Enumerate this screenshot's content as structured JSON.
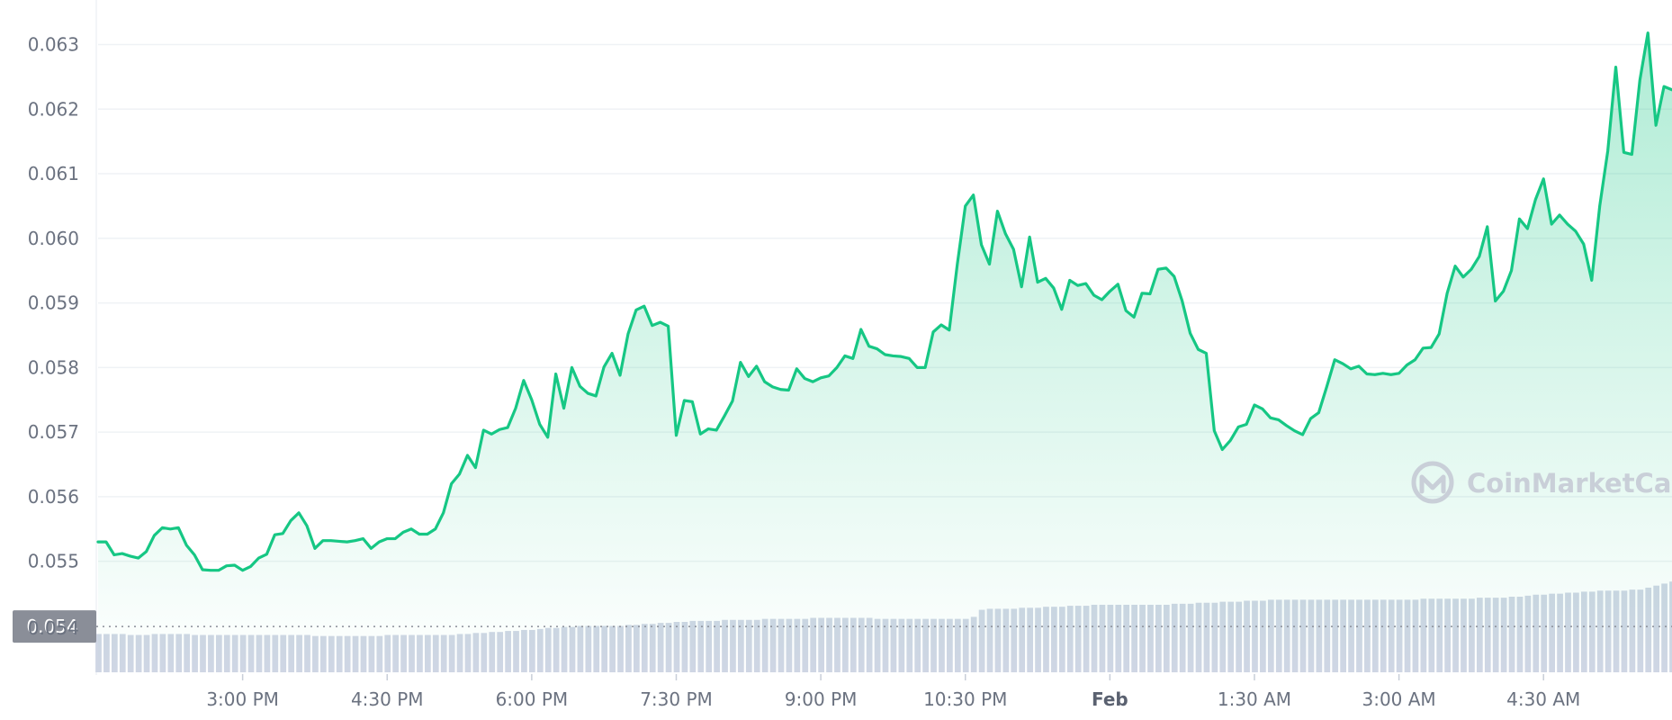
{
  "chart_data": {
    "type": "area",
    "title": "",
    "xlabel": "",
    "ylabel": "",
    "ylim": [
      0.0535,
      0.0637
    ],
    "x_tick_labels": [
      {
        "label": "3:00 PM",
        "i": 18
      },
      {
        "label": "4:30 PM",
        "i": 36
      },
      {
        "label": "6:00 PM",
        "i": 54
      },
      {
        "label": "7:30 PM",
        "i": 72
      },
      {
        "label": "9:00 PM",
        "i": 90
      },
      {
        "label": "10:30 PM",
        "i": 108
      },
      {
        "label": "Feb",
        "i": 126,
        "bold": true
      },
      {
        "label": "1:30 AM",
        "i": 144
      },
      {
        "label": "3:00 AM",
        "i": 162
      },
      {
        "label": "4:30 AM",
        "i": 180
      }
    ],
    "y_tick_labels": [
      "0.063",
      "0.062",
      "0.061",
      "0.060",
      "0.059",
      "0.058",
      "0.057",
      "0.056",
      "0.055",
      "0.054"
    ],
    "y_tick_values": [
      0.063,
      0.062,
      0.061,
      0.06,
      0.059,
      0.058,
      0.057,
      0.056,
      0.055,
      0.054
    ],
    "current_price_label": "0.054",
    "current_price_value": 0.05399,
    "series": [
      {
        "color": "#16c784",
        "values": [
          0.0553,
          0.0553,
          0.0551,
          0.05512,
          0.05508,
          0.05505,
          0.05515,
          0.0554,
          0.05552,
          0.0555,
          0.05552,
          0.05525,
          0.0551,
          0.05487,
          0.05486,
          0.05486,
          0.05493,
          0.05494,
          0.05486,
          0.05492,
          0.05505,
          0.05511,
          0.05541,
          0.05543,
          0.05563,
          0.05575,
          0.05555,
          0.0552,
          0.05532,
          0.05532,
          0.05531,
          0.0553,
          0.05532,
          0.05535,
          0.0552,
          0.0553,
          0.05535,
          0.05535,
          0.05545,
          0.0555,
          0.05542,
          0.05542,
          0.0555,
          0.05575,
          0.0562,
          0.05635,
          0.05664,
          0.05645,
          0.05703,
          0.05697,
          0.05704,
          0.05707,
          0.05737,
          0.0578,
          0.0575,
          0.05712,
          0.05692,
          0.0579,
          0.05737,
          0.058,
          0.05771,
          0.0576,
          0.05756,
          0.05801,
          0.05822,
          0.05788,
          0.05852,
          0.05889,
          0.05895,
          0.05865,
          0.0587,
          0.05864,
          0.05695,
          0.05749,
          0.05747,
          0.05697,
          0.05705,
          0.05703,
          0.05725,
          0.05748,
          0.05808,
          0.05786,
          0.05802,
          0.05778,
          0.0577,
          0.05766,
          0.05765,
          0.05798,
          0.05783,
          0.05778,
          0.05784,
          0.05787,
          0.058,
          0.05818,
          0.05814,
          0.05859,
          0.05833,
          0.05829,
          0.0582,
          0.05818,
          0.05817,
          0.05814,
          0.058,
          0.058,
          0.05855,
          0.05866,
          0.05858,
          0.0596,
          0.0605,
          0.06067,
          0.0599,
          0.0596,
          0.06042,
          0.06007,
          0.05983,
          0.05925,
          0.06002,
          0.05932,
          0.05938,
          0.05923,
          0.0589,
          0.05935,
          0.05927,
          0.0593,
          0.05912,
          0.05905,
          0.05918,
          0.05929,
          0.05888,
          0.05878,
          0.05915,
          0.05914,
          0.05952,
          0.05954,
          0.05941,
          0.05903,
          0.05853,
          0.05828,
          0.05822,
          0.05702,
          0.05673,
          0.05687,
          0.05708,
          0.05712,
          0.05742,
          0.05736,
          0.05722,
          0.05719,
          0.0571,
          0.05702,
          0.05696,
          0.05721,
          0.0573,
          0.0577,
          0.05812,
          0.05806,
          0.05798,
          0.05802,
          0.0579,
          0.05789,
          0.05791,
          0.05789,
          0.05791,
          0.05804,
          0.05812,
          0.0583,
          0.05831,
          0.05852,
          0.05915,
          0.05957,
          0.0594,
          0.05952,
          0.05972,
          0.06018,
          0.05903,
          0.05918,
          0.0595,
          0.0603,
          0.06015,
          0.0606,
          0.06092,
          0.06022,
          0.06036,
          0.06022,
          0.06011,
          0.05991,
          0.05935,
          0.0605,
          0.06135,
          0.06265,
          0.06133,
          0.0613,
          0.06245,
          0.06318,
          0.06175,
          0.06235,
          0.0623
        ]
      }
    ],
    "volume_values": [
      0.38,
      0.38,
      0.38,
      0.38,
      0.37,
      0.37,
      0.37,
      0.38,
      0.38,
      0.38,
      0.38,
      0.38,
      0.37,
      0.37,
      0.37,
      0.37,
      0.37,
      0.37,
      0.37,
      0.37,
      0.37,
      0.37,
      0.37,
      0.37,
      0.37,
      0.37,
      0.37,
      0.36,
      0.36,
      0.36,
      0.36,
      0.36,
      0.36,
      0.36,
      0.36,
      0.36,
      0.37,
      0.37,
      0.37,
      0.37,
      0.37,
      0.37,
      0.37,
      0.37,
      0.37,
      0.38,
      0.38,
      0.39,
      0.39,
      0.4,
      0.4,
      0.41,
      0.41,
      0.42,
      0.42,
      0.43,
      0.44,
      0.44,
      0.45,
      0.45,
      0.46,
      0.46,
      0.46,
      0.46,
      0.46,
      0.46,
      0.47,
      0.47,
      0.48,
      0.48,
      0.49,
      0.49,
      0.5,
      0.5,
      0.51,
      0.51,
      0.51,
      0.51,
      0.52,
      0.52,
      0.52,
      0.52,
      0.52,
      0.53,
      0.53,
      0.53,
      0.53,
      0.53,
      0.53,
      0.54,
      0.54,
      0.54,
      0.54,
      0.54,
      0.54,
      0.54,
      0.54,
      0.53,
      0.53,
      0.53,
      0.53,
      0.53,
      0.53,
      0.53,
      0.53,
      0.53,
      0.53,
      0.53,
      0.53,
      0.55,
      0.62,
      0.63,
      0.63,
      0.63,
      0.63,
      0.64,
      0.64,
      0.64,
      0.65,
      0.65,
      0.65,
      0.66,
      0.66,
      0.66,
      0.67,
      0.67,
      0.67,
      0.67,
      0.67,
      0.67,
      0.67,
      0.67,
      0.67,
      0.67,
      0.68,
      0.68,
      0.68,
      0.69,
      0.69,
      0.69,
      0.7,
      0.7,
      0.7,
      0.71,
      0.71,
      0.71,
      0.72,
      0.72,
      0.72,
      0.72,
      0.72,
      0.72,
      0.72,
      0.72,
      0.72,
      0.72,
      0.72,
      0.72,
      0.72,
      0.72,
      0.72,
      0.72,
      0.72,
      0.72,
      0.72,
      0.73,
      0.73,
      0.73,
      0.73,
      0.73,
      0.73,
      0.73,
      0.74,
      0.74,
      0.74,
      0.74,
      0.75,
      0.75,
      0.76,
      0.77,
      0.77,
      0.78,
      0.78,
      0.79,
      0.79,
      0.8,
      0.8,
      0.81,
      0.81,
      0.81,
      0.81,
      0.82,
      0.82,
      0.84,
      0.86,
      0.88,
      0.9,
      0.92,
      0.94,
      0.96,
      0.98,
      1.0
    ],
    "grid": true,
    "legend": "none"
  },
  "watermark": {
    "text": "CoinMarketCap",
    "icon": "coinmarketcap-logo-icon"
  },
  "colors": {
    "line": "#16c784",
    "area_top": "#16c784",
    "volume": "#cfd6e4",
    "grid": "#eff2f5",
    "current_label_bg": "#8a8e98",
    "watermark": "#c9cfd8"
  }
}
